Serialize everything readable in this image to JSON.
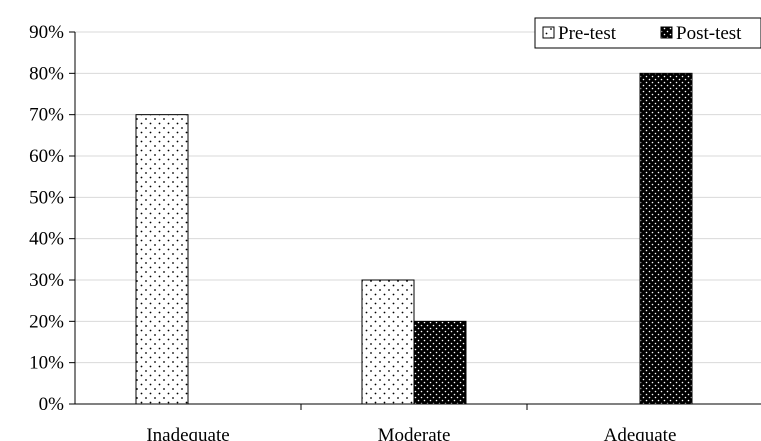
{
  "chart_data": {
    "type": "bar",
    "title": "",
    "xlabel": "",
    "ylabel": "",
    "categories": [
      "Inadequate",
      "Moderate",
      "Adequate"
    ],
    "series": [
      {
        "name": "Pre-test",
        "values": [
          70,
          30,
          0
        ],
        "pattern": "sparse-dots-on-white"
      },
      {
        "name": "Post-test",
        "values": [
          0,
          20,
          80
        ],
        "pattern": "white-dots-on-black"
      }
    ],
    "ylim": [
      0,
      90
    ],
    "yticks": [
      0,
      10,
      20,
      30,
      40,
      50,
      60,
      70,
      80,
      90
    ],
    "ytick_format": "percent",
    "grid": true,
    "legend_position": "top-right"
  }
}
